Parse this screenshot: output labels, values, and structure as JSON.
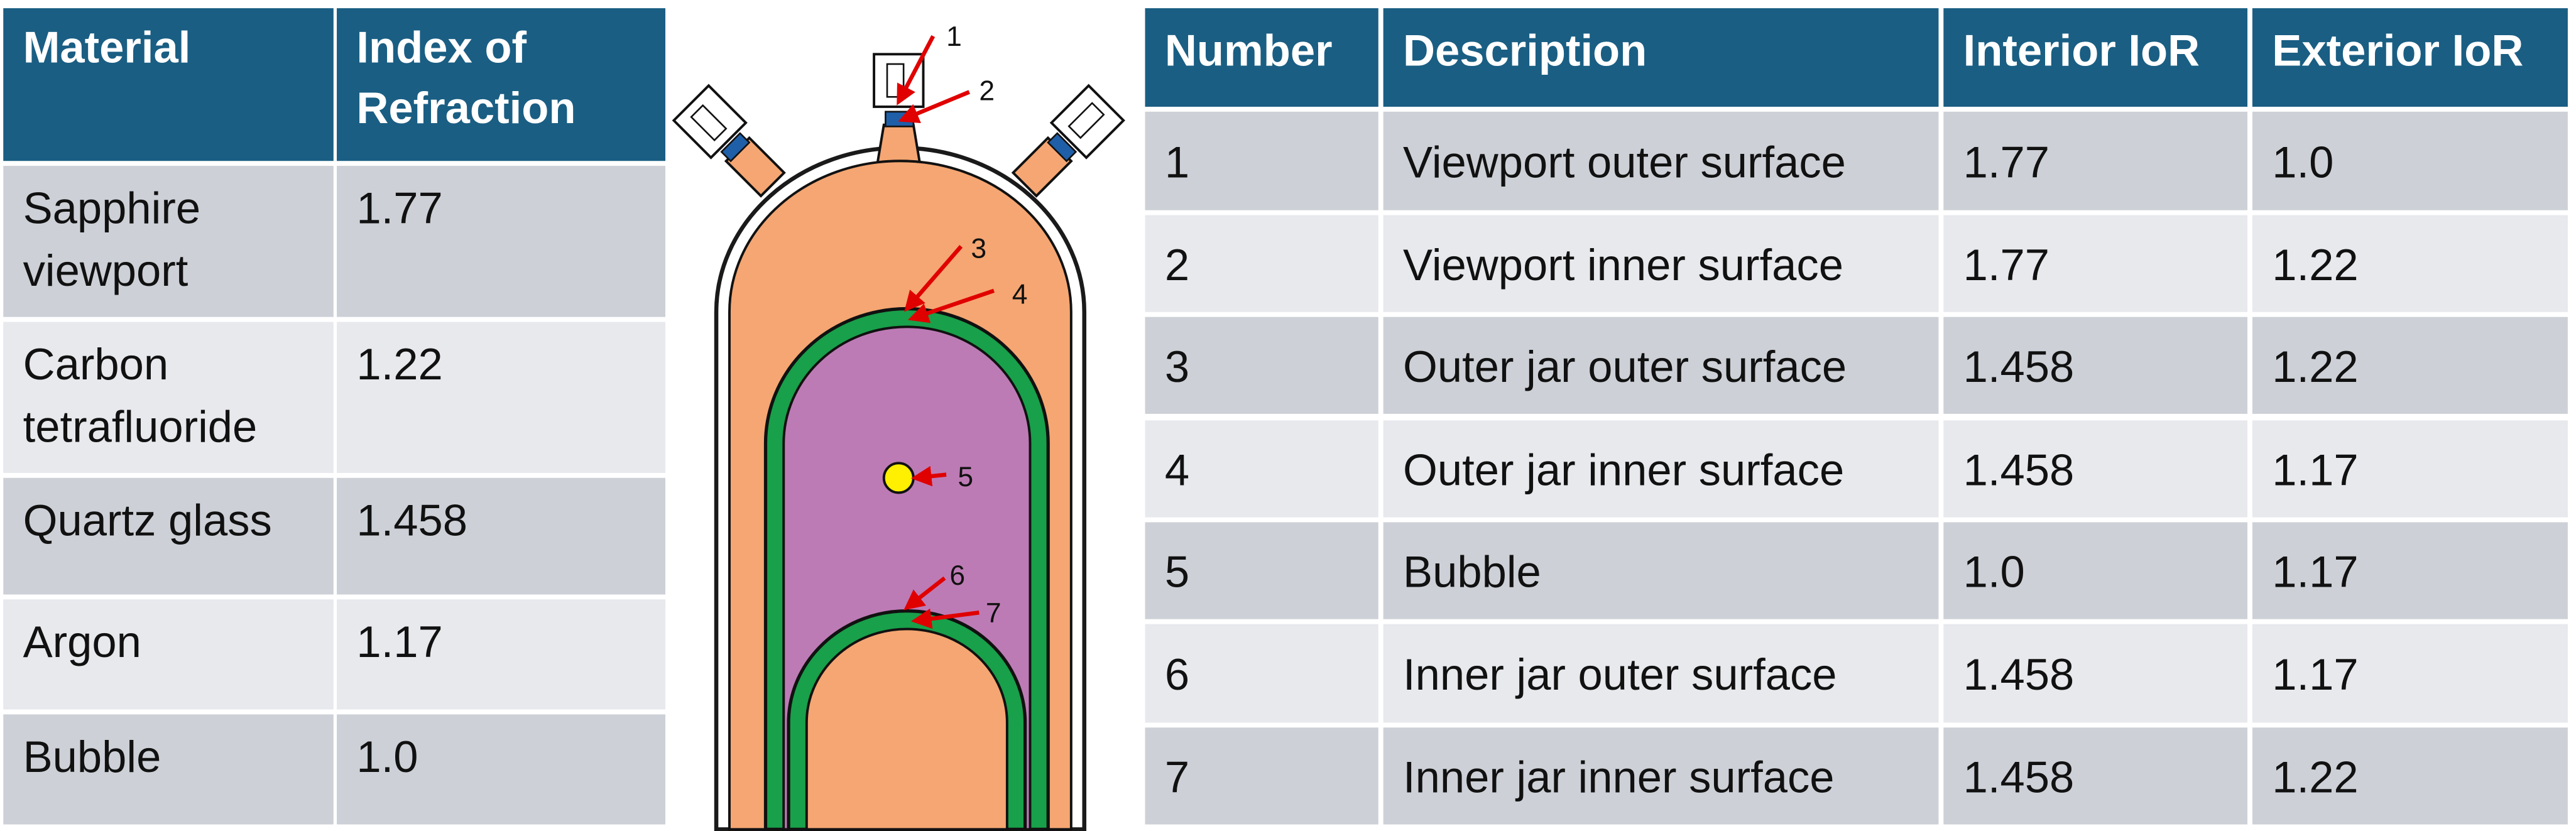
{
  "material_table": {
    "header": [
      "Material",
      "Index of Refraction"
    ],
    "rows": [
      {
        "name": "Sapphire viewport",
        "index": "1.77",
        "color": "#1f6fbf"
      },
      {
        "name": "Carbon tetrafluoride",
        "index": "1.22",
        "color": "#f4a97a"
      },
      {
        "name": "Quartz glass",
        "index": "1.458",
        "color": "#17a44b"
      },
      {
        "name": "Argon",
        "index": "1.17",
        "color": "#c07ab8"
      },
      {
        "name": "Bubble",
        "index": "1.0",
        "color": "#ffff00"
      }
    ]
  },
  "diagram": {
    "callouts": [
      "1",
      "2",
      "3",
      "4",
      "5",
      "6",
      "7"
    ]
  },
  "surface_table": {
    "header": [
      "Number",
      "Description",
      "Interior IoR",
      "Exterior IoR"
    ],
    "rows": [
      [
        "1",
        "Viewport outer surface",
        "1.77",
        "1.0"
      ],
      [
        "2",
        "Viewport inner surface",
        "1.77",
        "1.22"
      ],
      [
        "3",
        "Outer jar outer surface",
        "1.458",
        "1.22"
      ],
      [
        "4",
        "Outer jar inner surface",
        "1.458",
        "1.17"
      ],
      [
        "5",
        "Bubble",
        "1.0",
        "1.17"
      ],
      [
        "6",
        "Inner jar outer surface",
        "1.458",
        "1.17"
      ],
      [
        "7",
        "Inner jar inner surface",
        "1.458",
        "1.22"
      ]
    ]
  }
}
